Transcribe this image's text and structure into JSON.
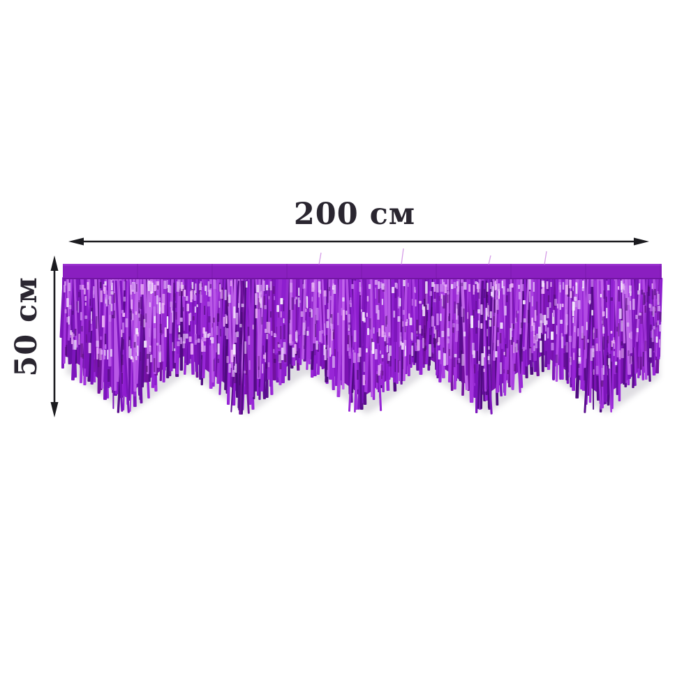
{
  "image_description": "Purple metallic foil fringe garland with scalloped tinsel edge, annotated with measurement arrows",
  "labels": {
    "width": "200 см",
    "height": "50 см"
  },
  "style": {
    "line_color": "#1b1b1f",
    "text_color": "#2a2630",
    "background": "#ffffff"
  },
  "garland": {
    "band_color": "#8a1fc0",
    "band_top_color": "#9d37d2",
    "band_edge_color": "#63108f",
    "silhouette_color": "#7b13b3",
    "fringe_back": [
      "#5a0d8e",
      "#6b10a6",
      "#7d15bd",
      "#8d1cce",
      "#9726d6",
      "#72129f",
      "#a334dd",
      "#4f0b80"
    ],
    "fringe_front": [
      "#9a2bd4",
      "#a93fe0",
      "#b24ce4",
      "#8d1fce",
      "#c065ea",
      "#7e16bb",
      "#b858e6",
      "#962bd0"
    ],
    "sparkle_colors": [
      "#d9a4f2",
      "#e9ccf9",
      "#f6edfd",
      "#c77cec",
      "#eeb9f7"
    ],
    "shade_colors": [
      "#4a0b72",
      "#3f0963",
      "#55106d"
    ],
    "thread_color": "#c77ce0",
    "shadow_color": "#8d8798",
    "scallop_count": 5,
    "seed": 20
  }
}
